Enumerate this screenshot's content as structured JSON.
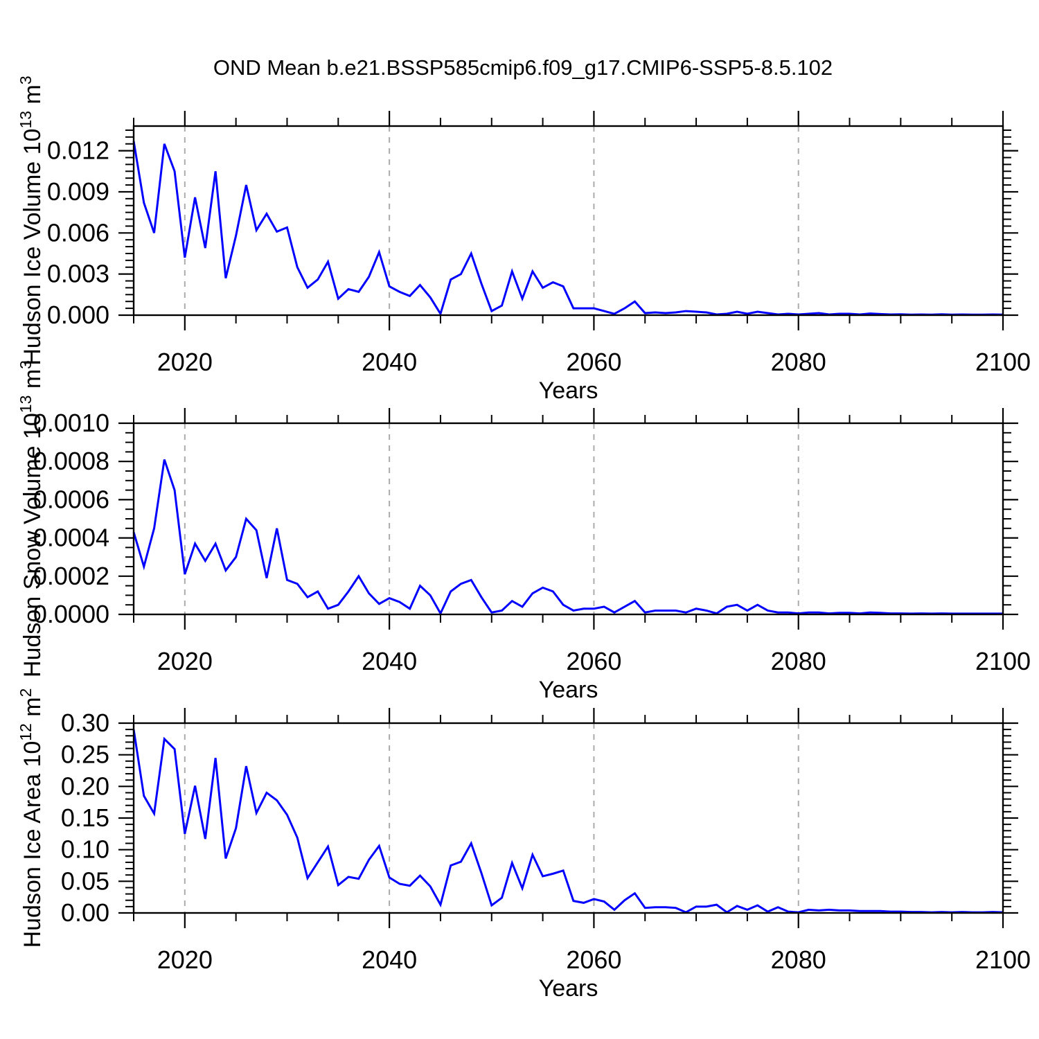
{
  "title": "OND Mean b.e21.BSSP585cmip6.f09_g17.CMIP6-SSP5-8.5.102",
  "colors": {
    "line": "#0000ff",
    "grid": "#ababab",
    "axis": "#000000"
  },
  "x_axis": {
    "label": "Years",
    "min": 2015,
    "max": 2100,
    "major_ticks": [
      2020,
      2040,
      2060,
      2080,
      2100
    ],
    "minor_step": 5,
    "gridlines": [
      2020,
      2040,
      2060,
      2080
    ]
  },
  "chart_data": [
    {
      "type": "line",
      "id": "hudson-ice-volume",
      "ylabel": {
        "base": "Hudson Ice Volume 10",
        "sup1": "13",
        "mid": " m",
        "sup2": "3"
      },
      "xlabel": "Years",
      "ymax": 0.0138,
      "yticks": [
        0,
        0.003,
        0.006,
        0.009,
        0.012
      ],
      "ytick_labels": [
        "0.000",
        "0.003",
        "0.006",
        "0.009",
        "0.012"
      ],
      "yminor_step": 0.0005,
      "x_start": 2015,
      "x_step": 1,
      "values": [
        0.0127,
        0.0082,
        0.006,
        0.0125,
        0.0105,
        0.0042,
        0.0086,
        0.0049,
        0.0105,
        0.0027,
        0.0058,
        0.0095,
        0.0062,
        0.0074,
        0.0061,
        0.0064,
        0.0035,
        0.002,
        0.0026,
        0.0039,
        0.0012,
        0.0019,
        0.0017,
        0.0028,
        0.0046,
        0.0021,
        0.0017,
        0.0014,
        0.0022,
        0.0013,
        0.0001,
        0.0026,
        0.003,
        0.0045,
        0.0023,
        0.0003,
        0.0007,
        0.0032,
        0.0012,
        0.0032,
        0.002,
        0.0024,
        0.0021,
        0.0005,
        0.0005,
        0.0005,
        0.0003,
        0.0001,
        0.0005,
        0.001,
        0.00015,
        0.0002,
        0.00015,
        0.0002,
        0.0003,
        0.00025,
        0.0002,
        5e-05,
        0.0001,
        0.00025,
        0.0001,
        0.00025,
        0.00015,
        5e-05,
        0.0001,
        5e-05,
        0.0001,
        0.00015,
        5e-05,
        0.0001,
        0.0001,
        5e-05,
        0.00012,
        8e-05,
        5e-05,
        6e-05,
        4e-05,
        5e-05,
        4e-05,
        6e-05,
        4e-05,
        5e-05,
        4e-05,
        4e-05,
        5e-05,
        4e-05
      ]
    },
    {
      "type": "line",
      "id": "hudson-snow-volume",
      "ylabel": {
        "base": "Hudson Snow Volume 10",
        "sup1": "13",
        "mid": " m",
        "sup2": "3"
      },
      "xlabel": "Years",
      "ymax": 0.001,
      "yticks": [
        0,
        0.0002,
        0.0004,
        0.0006,
        0.0008,
        0.001
      ],
      "ytick_labels": [
        "0.0000",
        "0.0002",
        "0.0004",
        "0.0006",
        "0.0008",
        "0.0010"
      ],
      "yminor_step": 5e-05,
      "x_start": 2015,
      "x_step": 1,
      "values": [
        0.00043,
        0.00025,
        0.00045,
        0.00081,
        0.00065,
        0.00021,
        0.00037,
        0.00028,
        0.00037,
        0.00023,
        0.0003,
        0.0005,
        0.00044,
        0.00019,
        0.00045,
        0.00018,
        0.00016,
        9e-05,
        0.00012,
        3e-05,
        5e-05,
        0.00012,
        0.0002,
        0.00011,
        5.5e-05,
        8.5e-05,
        6.5e-05,
        3e-05,
        0.00015,
        0.0001,
        5e-06,
        0.00012,
        0.00016,
        0.00018,
        9e-05,
        1e-05,
        2e-05,
        7e-05,
        4e-05,
        0.00011,
        0.00014,
        0.00012,
        5e-05,
        2e-05,
        3e-05,
        3e-05,
        4e-05,
        1e-05,
        4e-05,
        7e-05,
        1e-05,
        2e-05,
        2e-05,
        2e-05,
        1e-05,
        3e-05,
        2e-05,
        5e-06,
        4e-05,
        5e-05,
        2e-05,
        5e-05,
        2e-05,
        1e-05,
        1e-05,
        5e-06,
        1e-05,
        1e-05,
        5e-06,
        8e-06,
        8e-06,
        5e-06,
        1e-05,
        8e-06,
        5e-06,
        5e-06,
        4e-06,
        5e-06,
        4e-06,
        5e-06,
        4e-06,
        4e-06,
        4e-06,
        4e-06,
        4e-06,
        4e-06
      ]
    },
    {
      "type": "line",
      "id": "hudson-ice-area",
      "ylabel": {
        "base": "Hudson Ice Area 10",
        "sup1": "12",
        "mid": " m",
        "sup2": "2"
      },
      "xlabel": "Years",
      "ymax": 0.3,
      "yticks": [
        0,
        0.05,
        0.1,
        0.15,
        0.2,
        0.25,
        0.3
      ],
      "ytick_labels": [
        "0.00",
        "0.05",
        "0.10",
        "0.15",
        "0.20",
        "0.25",
        "0.30"
      ],
      "yminor_step": 0.01,
      "x_start": 2015,
      "x_step": 1,
      "values": [
        0.29,
        0.185,
        0.157,
        0.275,
        0.259,
        0.125,
        0.201,
        0.117,
        0.245,
        0.086,
        0.134,
        0.232,
        0.158,
        0.19,
        0.178,
        0.155,
        0.119,
        0.055,
        0.08,
        0.105,
        0.044,
        0.057,
        0.054,
        0.084,
        0.106,
        0.056,
        0.046,
        0.043,
        0.059,
        0.042,
        0.013,
        0.075,
        0.081,
        0.11,
        0.063,
        0.012,
        0.024,
        0.079,
        0.039,
        0.092,
        0.058,
        0.062,
        0.067,
        0.019,
        0.016,
        0.022,
        0.018,
        0.005,
        0.02,
        0.031,
        0.008,
        0.009,
        0.009,
        0.008,
        0.001,
        0.01,
        0.01,
        0.013,
        0.001,
        0.011,
        0.005,
        0.012,
        0.002,
        0.009,
        0.002,
        0.001,
        0.005,
        0.004,
        0.005,
        0.004,
        0.004,
        0.003,
        0.003,
        0.003,
        0.002,
        0.002,
        0.0015,
        0.0015,
        0.001,
        0.0015,
        0.001,
        0.0015,
        0.001,
        0.001,
        0.0015,
        0.001
      ]
    }
  ]
}
